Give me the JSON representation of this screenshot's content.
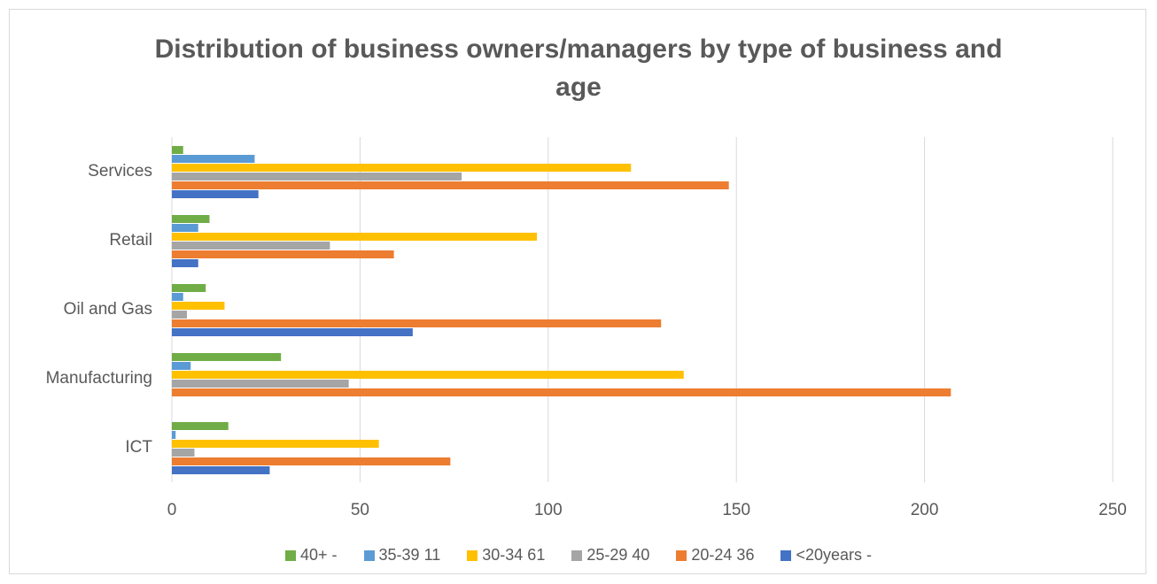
{
  "chart_data": {
    "type": "hbar",
    "title": "Distribution of business owners/managers by type of business and age",
    "categories": [
      "ICT",
      "Manufacturing",
      "Oil and Gas",
      "Retail",
      "Services"
    ],
    "series": [
      {
        "name": "40+ -",
        "color": "#70ad47",
        "values": [
          15,
          29,
          9,
          10,
          3
        ]
      },
      {
        "name": "35-39 11",
        "color": "#5b9bd5",
        "values": [
          1,
          5,
          3,
          7,
          22
        ]
      },
      {
        "name": "30-34 61",
        "color": "#ffc000",
        "values": [
          55,
          136,
          14,
          97,
          122
        ]
      },
      {
        "name": "25-29 40",
        "color": "#a5a5a5",
        "values": [
          6,
          47,
          4,
          42,
          77
        ]
      },
      {
        "name": "20-24 36",
        "color": "#ed7d31",
        "values": [
          74,
          207,
          130,
          59,
          148
        ]
      },
      {
        "name": "<20years -",
        "color": "#4472c4",
        "values": [
          26,
          null,
          64,
          7,
          23
        ]
      }
    ],
    "xlim": [
      0,
      250
    ],
    "xticks": [
      0,
      50,
      100,
      150,
      200,
      250
    ],
    "grid": true,
    "legend": "bottom"
  }
}
